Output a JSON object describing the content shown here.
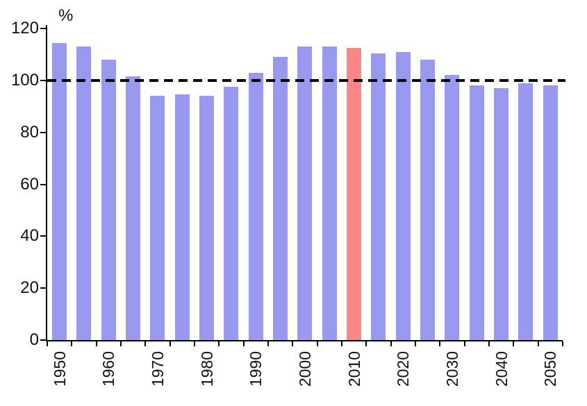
{
  "chart_data": {
    "type": "bar",
    "title": "",
    "xlabel": "",
    "ylabel": "%",
    "x": [
      1950,
      1955,
      1960,
      1965,
      1970,
      1975,
      1980,
      1985,
      1990,
      1995,
      2000,
      2005,
      2010,
      2015,
      2020,
      2025,
      2030,
      2035,
      2040,
      2045,
      2050
    ],
    "values": [
      114.5,
      113,
      108,
      101.5,
      94,
      94.5,
      94,
      97.5,
      103,
      109,
      113,
      113,
      112.5,
      110.5,
      111,
      108,
      102,
      98,
      97,
      99,
      98
    ],
    "ylim": [
      0,
      120
    ],
    "yticks": [
      0,
      20,
      40,
      60,
      80,
      100,
      120
    ],
    "xtick_labels": [
      "1950",
      "1960",
      "1970",
      "1980",
      "1990",
      "2000",
      "2010",
      "2020",
      "2030",
      "2040",
      "2050"
    ],
    "bar_color": "#9999F0",
    "highlight": {
      "year": 2010,
      "color": "#FB8686"
    },
    "reference_line": {
      "value": 100,
      "style": "dashed",
      "color": "#000000"
    },
    "grid": "off",
    "legend": "none"
  }
}
